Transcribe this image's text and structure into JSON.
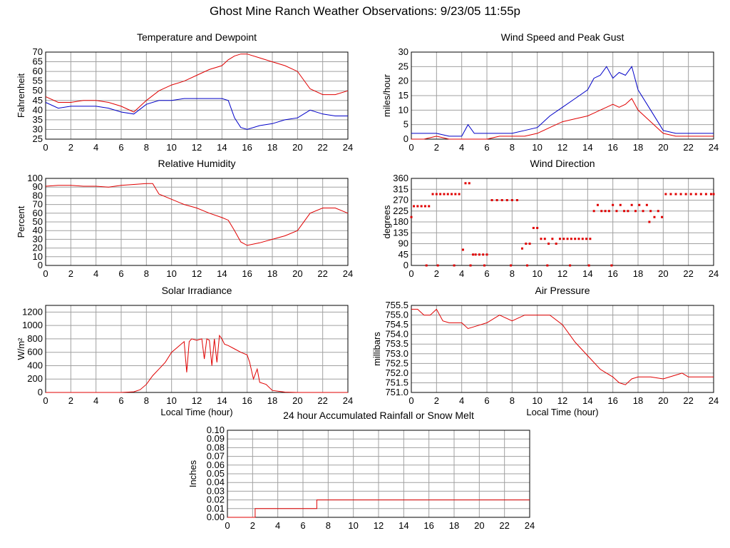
{
  "page": {
    "title": "Ghost Mine Ranch Weather Observations: 9/23/05 11:55p"
  },
  "colors": {
    "primary": "#e00000",
    "secondary": "#0000c8",
    "grid": "#a0a0a0"
  },
  "chart_data": [
    {
      "id": "temp",
      "type": "line",
      "title": "Temperature and Dewpoint",
      "xlabel": "",
      "ylabel": "Fahrenheit",
      "xlim": [
        0,
        24
      ],
      "ylim": [
        25,
        70
      ],
      "yticks": [
        25,
        30,
        35,
        40,
        45,
        50,
        55,
        60,
        65,
        70
      ],
      "grid": true,
      "series": [
        {
          "color": "#e00000",
          "x": [
            0,
            1,
            2,
            3,
            4,
            5,
            6,
            7,
            8,
            9,
            10,
            11,
            12,
            13,
            14,
            14.5,
            15,
            15.5,
            16,
            17,
            18,
            19,
            20,
            21,
            22,
            23,
            24
          ],
          "y": [
            47,
            44,
            44,
            45,
            45,
            44,
            42,
            39,
            45,
            50,
            53,
            55,
            58,
            61,
            63,
            66,
            68,
            69,
            69,
            67,
            65,
            63,
            60,
            51,
            48,
            48,
            50
          ]
        },
        {
          "color": "#0000c8",
          "x": [
            0,
            1,
            2,
            3,
            4,
            5,
            6,
            7,
            8,
            9,
            10,
            11,
            12,
            13,
            14,
            14.5,
            15,
            15.5,
            16,
            17,
            18,
            19,
            20,
            21,
            22,
            23,
            24
          ],
          "y": [
            44,
            41,
            42,
            42,
            42,
            41,
            39,
            38,
            43,
            45,
            45,
            46,
            46,
            46,
            46,
            45,
            36,
            31,
            30,
            32,
            33,
            35,
            36,
            40,
            38,
            37,
            37
          ]
        }
      ]
    },
    {
      "id": "wind",
      "type": "line",
      "title": "Wind Speed and Peak Gust",
      "xlabel": "",
      "ylabel": "miles/hour",
      "xlim": [
        0,
        24
      ],
      "ylim": [
        0,
        30
      ],
      "yticks": [
        0,
        5,
        10,
        15,
        20,
        25,
        30
      ],
      "grid": true,
      "series": [
        {
          "color": "#0000c8",
          "x": [
            0,
            1,
            2,
            3,
            4,
            4.5,
            5,
            6,
            7,
            8,
            9,
            10,
            11,
            12,
            13,
            14,
            14.5,
            15,
            15.5,
            16,
            16.5,
            17,
            17.5,
            18,
            19,
            20,
            21,
            22,
            23,
            24
          ],
          "y": [
            2,
            2,
            2,
            1,
            1,
            5,
            2,
            2,
            2,
            2,
            3,
            4,
            8,
            11,
            14,
            17,
            21,
            22,
            25,
            21,
            23,
            22,
            25,
            17,
            10,
            3,
            2,
            2,
            2,
            2
          ]
        },
        {
          "color": "#e00000",
          "x": [
            0,
            1,
            2,
            3,
            4,
            5,
            6,
            7,
            8,
            9,
            10,
            11,
            12,
            13,
            14,
            14.5,
            15,
            15.5,
            16,
            16.5,
            17,
            17.5,
            18,
            19,
            20,
            21,
            22,
            23,
            24
          ],
          "y": [
            0,
            0,
            1,
            0,
            0,
            0,
            0,
            1,
            1,
            1,
            2,
            4,
            6,
            7,
            8,
            9,
            10,
            11,
            12,
            11,
            12,
            14,
            10,
            6,
            2,
            1,
            1,
            1,
            1
          ]
        }
      ]
    },
    {
      "id": "rh",
      "type": "line",
      "title": "Relative Humidity",
      "xlabel": "",
      "ylabel": "Percent",
      "xlim": [
        0,
        24
      ],
      "ylim": [
        0,
        100
      ],
      "yticks": [
        0,
        10,
        20,
        30,
        40,
        50,
        60,
        70,
        80,
        90,
        100
      ],
      "grid": true,
      "series": [
        {
          "color": "#e00000",
          "x": [
            0,
            1,
            2,
            3,
            4,
            5,
            6,
            7,
            8,
            8.5,
            9,
            10,
            11,
            12,
            13,
            14,
            14.5,
            15,
            15.5,
            16,
            17,
            18,
            19,
            20,
            21,
            22,
            23,
            24
          ],
          "y": [
            91,
            92,
            92,
            91,
            91,
            90,
            92,
            93,
            94,
            94,
            82,
            76,
            70,
            66,
            60,
            55,
            52,
            40,
            27,
            23,
            26,
            30,
            34,
            40,
            60,
            66,
            66,
            60
          ]
        }
      ]
    },
    {
      "id": "wdir",
      "type": "scatter",
      "title": "Wind Direction",
      "xlabel": "",
      "ylabel": "degrees",
      "xlim": [
        0,
        24
      ],
      "ylim": [
        0,
        360
      ],
      "yticks": [
        0,
        45,
        90,
        135,
        180,
        225,
        270,
        315,
        360
      ],
      "grid": true,
      "series": [
        {
          "color": "#e00000",
          "x": [
            0,
            0.2,
            0.5,
            0.8,
            1.1,
            1.4,
            1.7,
            2.0,
            2.3,
            2.6,
            2.9,
            3.2,
            3.5,
            3.8,
            4.1,
            4.3,
            4.6,
            4.9,
            5.1,
            5.4,
            5.7,
            6.0,
            6.4,
            6.8,
            7.2,
            7.6,
            8.0,
            8.4,
            8.8,
            9.1,
            9.4,
            9.7,
            10.0,
            10.3,
            10.6,
            10.9,
            11.2,
            11.5,
            11.8,
            12.1,
            12.4,
            12.7,
            13.0,
            13.3,
            13.6,
            13.9,
            14.2,
            14.5,
            14.8,
            15.1,
            15.4,
            15.7,
            16.0,
            16.3,
            16.6,
            16.9,
            17.2,
            17.5,
            17.8,
            18.1,
            18.4,
            18.7,
            19.0,
            19.3,
            19.6,
            19.9,
            20.2,
            20.6,
            21.0,
            21.4,
            21.8,
            22.2,
            22.6,
            23.0,
            23.4,
            23.8,
            24.0,
            1.2,
            2.1,
            3.4,
            4.7,
            5.8,
            7.9,
            9.2,
            10.8,
            12.6,
            14.1,
            15.9,
            18.9
          ],
          "y": [
            200,
            245,
            245,
            245,
            245,
            245,
            295,
            295,
            295,
            295,
            295,
            295,
            295,
            295,
            65,
            340,
            340,
            45,
            45,
            45,
            45,
            45,
            270,
            270,
            270,
            270,
            270,
            270,
            70,
            90,
            90,
            155,
            155,
            110,
            110,
            90,
            110,
            90,
            110,
            110,
            110,
            110,
            110,
            110,
            110,
            110,
            110,
            225,
            250,
            225,
            225,
            225,
            250,
            225,
            250,
            225,
            225,
            250,
            225,
            250,
            225,
            250,
            225,
            200,
            225,
            200,
            295,
            295,
            295,
            295,
            295,
            295,
            295,
            295,
            295,
            295,
            295,
            0,
            0,
            0,
            0,
            0,
            0,
            0,
            0,
            0,
            0,
            0,
            180
          ]
        }
      ]
    },
    {
      "id": "solar",
      "type": "line",
      "title": "Solar Irradiance",
      "xlabel": "Local Time (hour)",
      "ylabel": "W/m²",
      "xlim": [
        0,
        24
      ],
      "ylim": [
        0,
        1300
      ],
      "yticks": [
        0,
        200,
        400,
        600,
        800,
        1000,
        1200
      ],
      "grid": true,
      "series": [
        {
          "color": "#e00000",
          "x": [
            0,
            6,
            7,
            7.5,
            8,
            8.5,
            9,
            9.5,
            10,
            10.5,
            11,
            11.2,
            11.4,
            11.6,
            12,
            12.4,
            12.6,
            12.8,
            13,
            13.2,
            13.4,
            13.6,
            13.8,
            14,
            14.2,
            14.5,
            15,
            15.5,
            16,
            16.2,
            16.5,
            16.8,
            17,
            17.5,
            18,
            19,
            20,
            24
          ],
          "y": [
            0,
            0,
            10,
            40,
            120,
            250,
            350,
            450,
            600,
            680,
            760,
            300,
            760,
            800,
            780,
            800,
            500,
            800,
            780,
            400,
            800,
            450,
            850,
            800,
            720,
            700,
            650,
            600,
            560,
            450,
            200,
            350,
            150,
            120,
            30,
            5,
            0,
            0
          ]
        }
      ]
    },
    {
      "id": "press",
      "type": "line",
      "title": "Air Pressure",
      "xlabel": "Local Time (hour)",
      "ylabel": "millibars",
      "xlim": [
        0,
        24
      ],
      "ylim": [
        751,
        755.5
      ],
      "yticks": [
        751.0,
        751.5,
        752.0,
        752.5,
        753.0,
        753.5,
        754.0,
        754.5,
        755.0,
        755.5
      ],
      "yticklabels": [
        "751.0",
        "751.5",
        "752.0",
        "752.5",
        "753.0",
        "753.5",
        "754.0",
        "754.5",
        "755.0",
        "755.5"
      ],
      "grid": true,
      "series": [
        {
          "color": "#e00000",
          "x": [
            0,
            0.5,
            1,
            1.5,
            2,
            2.5,
            3,
            4,
            4.5,
            5,
            6,
            7,
            8,
            9,
            10,
            11,
            12,
            13,
            14,
            15,
            15.5,
            16,
            16.5,
            17,
            17.5,
            18,
            19,
            20,
            21,
            21.5,
            22,
            23,
            24
          ],
          "y": [
            755.3,
            755.3,
            755.0,
            755.0,
            755.3,
            754.7,
            754.6,
            754.6,
            754.3,
            754.4,
            754.6,
            755.0,
            754.7,
            755.0,
            755.0,
            755.0,
            754.5,
            753.6,
            752.9,
            752.2,
            752.0,
            751.8,
            751.5,
            751.4,
            751.7,
            751.8,
            751.8,
            751.7,
            751.9,
            752.0,
            751.8,
            751.8,
            751.8
          ]
        }
      ]
    },
    {
      "id": "rain",
      "type": "line",
      "title": "24 hour Accumulated Rainfall or Snow Melt",
      "xlabel": "",
      "ylabel": "Inches",
      "xlim": [
        0,
        24
      ],
      "ylim": [
        0,
        0.1
      ],
      "yticks": [
        0.0,
        0.01,
        0.02,
        0.03,
        0.04,
        0.05,
        0.06,
        0.07,
        0.08,
        0.09,
        0.1
      ],
      "yticklabels": [
        "0.00",
        "0.01",
        "0.02",
        "0.03",
        "0.04",
        "0.05",
        "0.06",
        "0.07",
        "0.08",
        "0.09",
        "0.10"
      ],
      "grid": true,
      "series": [
        {
          "color": "#e00000",
          "x": [
            0,
            2.2,
            2.2,
            7.1,
            7.1,
            24
          ],
          "y": [
            0,
            0,
            0.01,
            0.01,
            0.02,
            0.02
          ]
        }
      ]
    }
  ]
}
